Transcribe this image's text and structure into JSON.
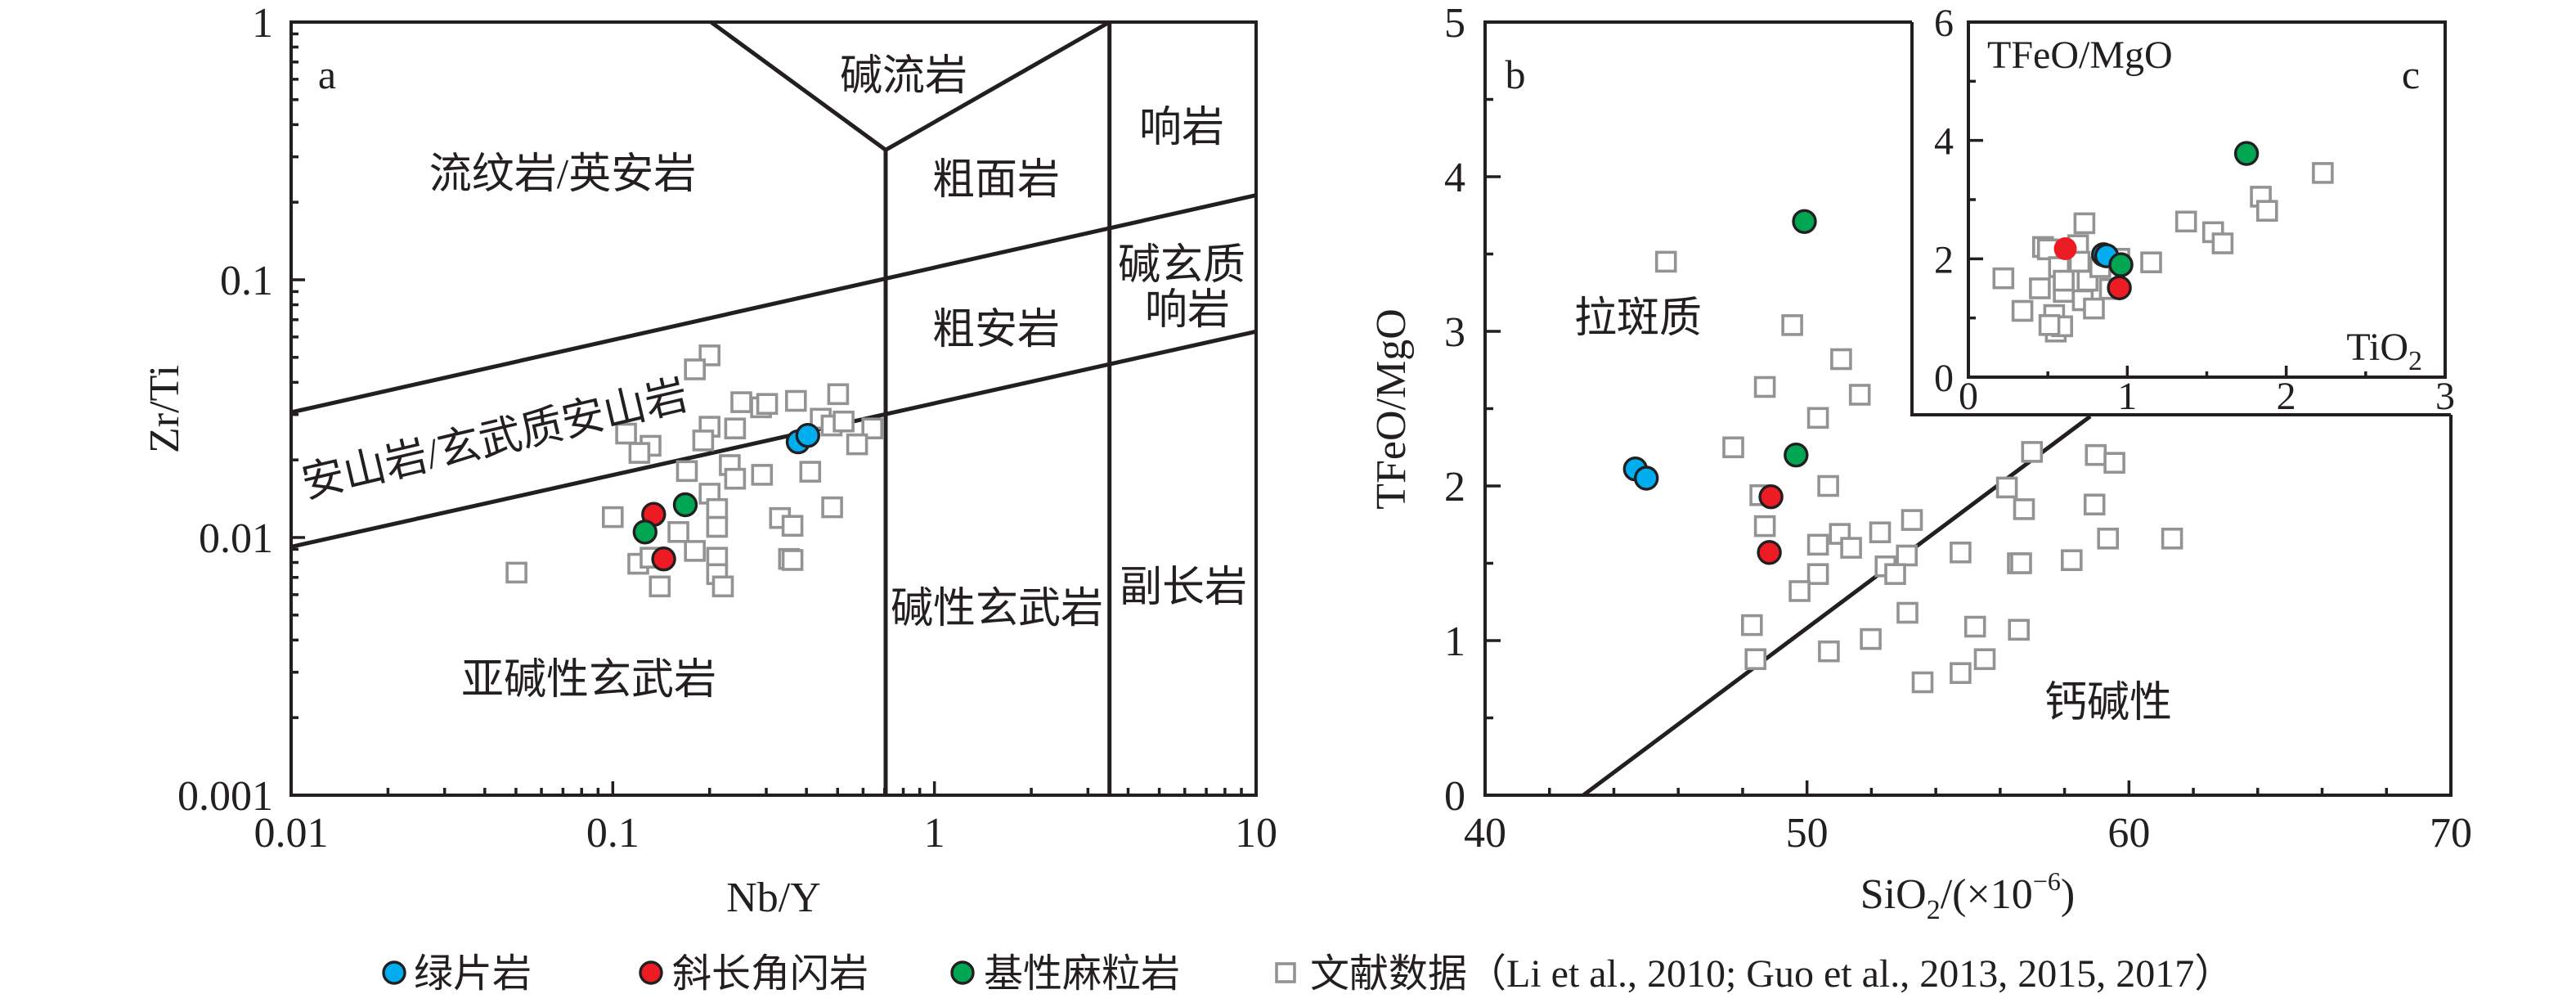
{
  "figure": {
    "legend": [
      {
        "key": "greenschist",
        "label": "绿片岩",
        "marker": "circle",
        "color": "#00aeef"
      },
      {
        "key": "amphibolite",
        "label": "斜长角闪岩",
        "marker": "circle",
        "color": "#ed1c24"
      },
      {
        "key": "granulite",
        "label": "基性麻粒岩",
        "marker": "circle",
        "color": "#00a651"
      },
      {
        "key": "literature",
        "label": "文献数据（Li et al., 2010; Guo et al., 2013, 2015, 2017）",
        "marker": "square",
        "color": "#939393"
      }
    ],
    "outline_color": "#231f20",
    "line_color": "#231f20"
  },
  "chart_data": [
    {
      "panel_label": "a",
      "type": "scatter",
      "title": "",
      "xlabel": "Nb/Y",
      "ylabel": "Zr/Ti",
      "xscale": "log",
      "yscale": "log",
      "xlim": [
        0.01,
        10
      ],
      "ylim": [
        0.001,
        1
      ],
      "xticks": [
        0.01,
        0.1,
        1,
        10
      ],
      "xtick_labels": [
        "0.01",
        "0.1",
        "1",
        "10"
      ],
      "yticks": [
        0.001,
        0.01,
        0.1,
        1
      ],
      "ytick_labels": [
        "0.001",
        "0.01",
        "0.1",
        "1"
      ],
      "grid": false,
      "boundaries": [
        {
          "points": [
            [
              0.202,
              1
            ],
            [
              0.705,
              0.319
            ],
            [
              3.5,
              1
            ]
          ]
        },
        {
          "points": [
            [
              0.705,
              0.319
            ],
            [
              0.705,
              0.001
            ]
          ]
        },
        {
          "points": [
            [
              3.5,
              1
            ],
            [
              3.5,
              0.001
            ]
          ]
        },
        {
          "points": [
            [
              0.01,
              0.0306
            ],
            [
              10,
              0.213
            ]
          ]
        },
        {
          "points": [
            [
              0.01,
              0.0092
            ],
            [
              10,
              0.063
            ]
          ]
        }
      ],
      "fields": [
        {
          "lines": [
            "碱流岩"
          ]
        },
        {
          "lines": [
            "响岩"
          ]
        },
        {
          "lines": [
            "流纹岩/英安岩"
          ]
        },
        {
          "lines": [
            "粗面岩"
          ]
        },
        {
          "lines": [
            "碱玄质",
            "响岩"
          ]
        },
        {
          "lines": [
            "粗安岩"
          ]
        },
        {
          "lines": [
            "安山岩/玄武质安山岩"
          ]
        },
        {
          "lines": [
            "碱性玄武岩"
          ]
        },
        {
          "lines": [
            "副长岩"
          ]
        },
        {
          "lines": [
            "亚碱性玄武岩"
          ]
        }
      ],
      "series": [
        {
          "key": "literature",
          "name": "文献数据",
          "points": [
            [
              0.2,
              0.0509
            ],
            [
              0.18,
              0.0449
            ],
            [
              0.251,
              0.0335
            ],
            [
              0.289,
              0.032
            ],
            [
              0.302,
              0.033
            ],
            [
              0.371,
              0.0339
            ],
            [
              0.502,
              0.036
            ],
            [
              0.443,
              0.0289
            ],
            [
              0.479,
              0.0272
            ],
            [
              0.522,
              0.0282
            ],
            [
              0.641,
              0.0265
            ],
            [
              0.575,
              0.023
            ],
            [
              0.11,
              0.0253
            ],
            [
              0.131,
              0.0227
            ],
            [
              0.121,
              0.0213
            ],
            [
              0.2,
              0.0269
            ],
            [
              0.191,
              0.0238
            ],
            [
              0.24,
              0.0265
            ],
            [
              0.17,
              0.0181
            ],
            [
              0.231,
              0.0191
            ],
            [
              0.24,
              0.0169
            ],
            [
              0.291,
              0.0175
            ],
            [
              0.411,
              0.018
            ],
            [
              0.2,
              0.0148
            ],
            [
              0.211,
              0.0129
            ],
            [
              0.211,
              0.011
            ],
            [
              0.1,
              0.012
            ],
            [
              0.331,
              0.0119
            ],
            [
              0.362,
              0.0111
            ],
            [
              0.481,
              0.0131
            ],
            [
              0.16,
              0.0105
            ],
            [
              0.18,
              0.00887
            ],
            [
              0.211,
              0.00835
            ],
            [
              0.12,
              0.00791
            ],
            [
              0.131,
              0.00835
            ],
            [
              0.14,
              0.00646
            ],
            [
              0.211,
              0.00721
            ],
            [
              0.22,
              0.00646
            ],
            [
              0.353,
              0.00826
            ],
            [
              0.362,
              0.00818
            ],
            [
              0.0502,
              0.00731
            ]
          ]
        },
        {
          "key": "greenschist",
          "name": "绿片岩",
          "points": [
            [
              0.377,
              0.0235
            ],
            [
              0.404,
              0.0249
            ]
          ]
        },
        {
          "key": "amphibolite",
          "name": "斜长角闪岩",
          "points": [
            [
              0.134,
              0.0123
            ],
            [
              0.144,
              0.00826
            ]
          ]
        },
        {
          "key": "granulite",
          "name": "基性麻粒岩",
          "points": [
            [
              0.168,
              0.0134
            ],
            [
              0.126,
              0.0105
            ]
          ]
        }
      ]
    },
    {
      "panel_label": "b",
      "type": "scatter",
      "title": "",
      "xlabel": [
        {
          "text": "SiO"
        },
        {
          "text": "2",
          "shift": "sub"
        },
        {
          "text": "/(×10"
        },
        {
          "text": "−6",
          "shift": "sup"
        },
        {
          "text": ")"
        }
      ],
      "ylabel": "TFeO/MgO",
      "xscale": "linear",
      "yscale": "linear",
      "xlim": [
        40,
        70
      ],
      "ylim": [
        0,
        5
      ],
      "xticks": [
        40,
        50,
        60,
        70
      ],
      "xtick_labels": [
        "40",
        "50",
        "60",
        "70"
      ],
      "yticks": [
        0,
        1,
        2,
        3,
        4,
        5
      ],
      "ytick_labels": [
        "0",
        "1",
        "2",
        "3",
        "4",
        "5"
      ],
      "grid": false,
      "boundaries": [
        {
          "points": [
            [
              43.05,
              0
            ],
            [
              58.8,
              2.45
            ]
          ]
        }
      ],
      "fields": [
        {
          "lines": [
            "拉斑质"
          ]
        },
        {
          "lines": [
            "钙碱性"
          ]
        }
      ],
      "series": [
        {
          "key": "literature",
          "name": "文献数据",
          "points": [
            [
              45.62,
              3.45
            ],
            [
              49.54,
              3.04
            ],
            [
              51.06,
              2.82
            ],
            [
              48.69,
              2.64
            ],
            [
              51.64,
              2.59
            ],
            [
              50.34,
              2.44
            ],
            [
              47.71,
              2.25
            ],
            [
              50.66,
              2.0
            ],
            [
              48.55,
              1.94
            ],
            [
              48.69,
              1.74
            ],
            [
              50.34,
              1.62
            ],
            [
              51.02,
              1.69
            ],
            [
              51.37,
              1.6
            ],
            [
              52.27,
              1.7
            ],
            [
              53.26,
              1.78
            ],
            [
              53.1,
              1.55
            ],
            [
              52.44,
              1.48
            ],
            [
              52.74,
              1.43
            ],
            [
              54.77,
              1.57
            ],
            [
              50.34,
              1.43
            ],
            [
              49.77,
              1.32
            ],
            [
              53.12,
              1.18
            ],
            [
              55.22,
              1.09
            ],
            [
              48.29,
              1.1
            ],
            [
              48.4,
              0.88
            ],
            [
              50.68,
              0.93
            ],
            [
              51.98,
              1.01
            ],
            [
              55.52,
              0.88
            ],
            [
              54.77,
              0.79
            ],
            [
              53.59,
              0.73
            ],
            [
              56.99,
              2.22
            ],
            [
              58.97,
              2.2
            ],
            [
              59.55,
              2.15
            ],
            [
              56.21,
              1.99
            ],
            [
              56.74,
              1.85
            ],
            [
              58.93,
              1.88
            ],
            [
              59.35,
              1.66
            ],
            [
              61.34,
              1.66
            ],
            [
              56.55,
              1.5
            ],
            [
              56.65,
              1.5
            ],
            [
              58.22,
              1.52
            ],
            [
              56.58,
              1.07
            ]
          ]
        },
        {
          "key": "greenschist",
          "name": "绿片岩",
          "points": [
            [
              44.67,
              2.11
            ],
            [
              45.01,
              2.05
            ]
          ]
        },
        {
          "key": "amphibolite",
          "name": "斜长角闪岩",
          "points": [
            [
              48.88,
              1.93
            ],
            [
              48.83,
              1.57
            ]
          ]
        },
        {
          "key": "granulite",
          "name": "基性麻粒岩",
          "points": [
            [
              49.92,
              3.71
            ],
            [
              49.66,
              2.2
            ]
          ]
        }
      ]
    },
    {
      "panel_label": "c",
      "type": "scatter",
      "title": "",
      "xlabel": [
        {
          "text": "TiO"
        },
        {
          "text": "2",
          "shift": "sub"
        }
      ],
      "ylabel": "TFeO/MgO",
      "xscale": "linear",
      "yscale": "linear",
      "xlim": [
        0,
        3
      ],
      "ylim": [
        0,
        6
      ],
      "xticks": [
        0,
        1,
        2,
        3
      ],
      "xtick_labels": [
        "0",
        "1",
        "2",
        "3"
      ],
      "yticks": [
        0,
        2,
        4,
        6
      ],
      "ytick_labels": [
        "0",
        "2",
        "4",
        "6"
      ],
      "grid": false,
      "inset_of": "b",
      "boundaries": [],
      "fields": [],
      "series": [
        {
          "key": "literature",
          "name": "文献数据",
          "points": [
            [
              0.22,
              1.67
            ],
            [
              0.34,
              1.12
            ],
            [
              0.45,
              1.5
            ],
            [
              0.47,
              2.2
            ],
            [
              0.5,
              2.16
            ],
            [
              0.54,
              1.05
            ],
            [
              0.55,
              0.77
            ],
            [
              0.59,
              0.86
            ],
            [
              0.51,
              0.88
            ],
            [
              0.57,
              1.86
            ],
            [
              0.6,
              1.44
            ],
            [
              0.6,
              1.63
            ],
            [
              0.69,
              2.23
            ],
            [
              0.7,
              1.95
            ],
            [
              0.73,
              2.6
            ],
            [
              0.72,
              1.3
            ],
            [
              0.75,
              1.63
            ],
            [
              0.79,
              1.16
            ],
            [
              0.83,
              1.86
            ],
            [
              0.89,
              1.49
            ],
            [
              0.95,
              2.0
            ],
            [
              1.15,
              1.94
            ],
            [
              1.37,
              2.63
            ],
            [
              1.54,
              2.45
            ],
            [
              1.6,
              2.26
            ],
            [
              1.84,
              3.05
            ],
            [
              1.88,
              2.81
            ],
            [
              2.23,
              3.45
            ]
          ]
        },
        {
          "key": "greenschist",
          "name": "绿片岩",
          "points": [
            [
              0.85,
              2.07
            ],
            [
              0.87,
              2.05
            ]
          ]
        },
        {
          "key": "amphibolite",
          "name": "斜长角闪岩",
          "points": [
            [
              0.61,
              2.17
            ],
            [
              0.95,
              1.51
            ]
          ],
          "unoutlined": [
            0
          ]
        },
        {
          "key": "granulite",
          "name": "基性麻粒岩",
          "points": [
            [
              0.96,
              1.9
            ],
            [
              1.75,
              3.78
            ]
          ]
        }
      ]
    }
  ]
}
